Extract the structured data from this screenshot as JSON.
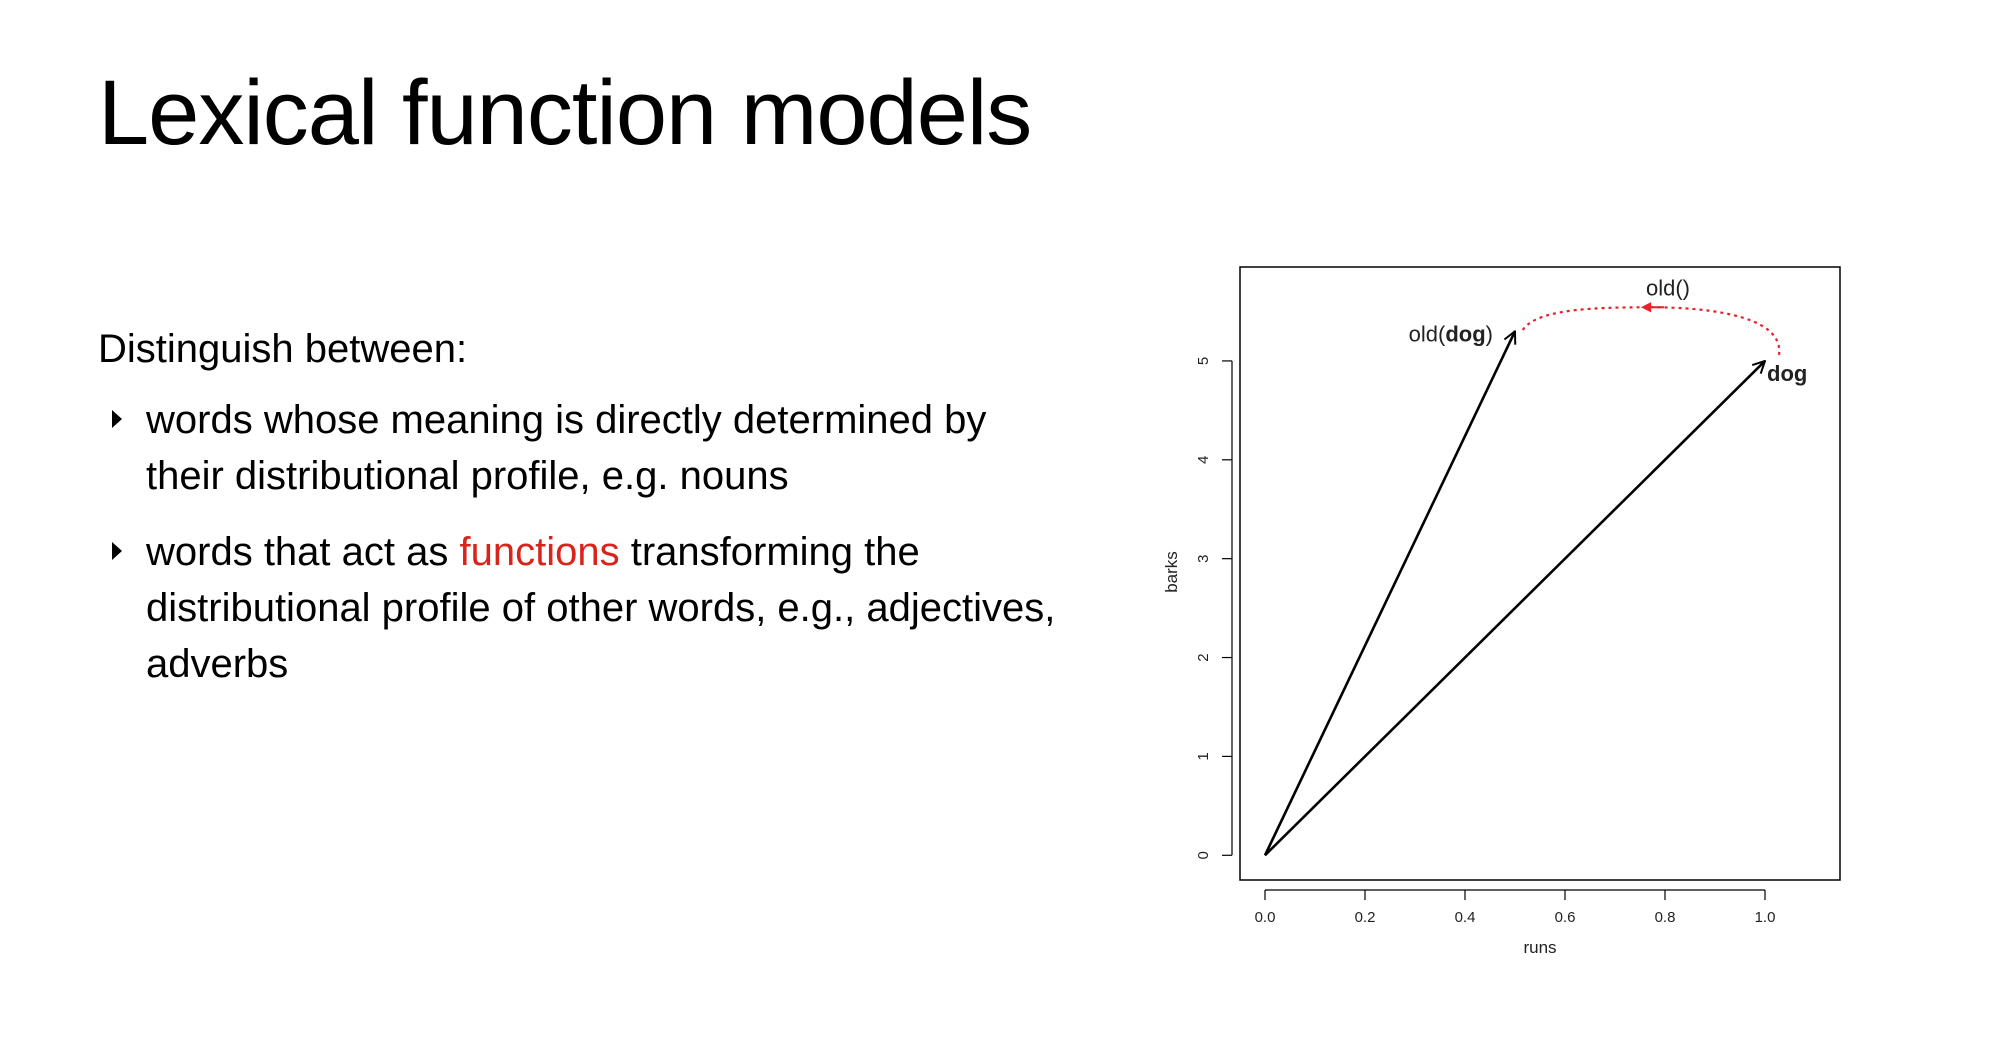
{
  "slide": {
    "title": "Lexical function models",
    "intro": "Distinguish between:",
    "bullets": [
      {
        "text": "words whose meaning is directly determined by their distributional profile, e.g. nouns"
      },
      {
        "before": "words that act as ",
        "highlight": "functions",
        "after": " transforming the distributional profile of other words, e.g., adjectives, adverbs"
      }
    ],
    "highlight_color": "#d9241b"
  },
  "chart_data": {
    "type": "scatter",
    "xlabel": "runs",
    "ylabel": "barks",
    "xlim": [
      -0.05,
      1.15
    ],
    "ylim": [
      -0.25,
      5.95
    ],
    "xticks": [
      "0.0",
      "0.2",
      "0.4",
      "0.6",
      "0.8",
      "1.0"
    ],
    "yticks": [
      "0",
      "1",
      "2",
      "3",
      "4",
      "5"
    ],
    "vectors": [
      {
        "name": "old(dog)",
        "label_prefix": "old(",
        "label_bold": "dog",
        "label_suffix": ")",
        "from": [
          0,
          0
        ],
        "to": [
          0.5,
          5.3
        ]
      },
      {
        "name": "dog",
        "label_prefix": "",
        "label_bold": "dog",
        "label_suffix": "",
        "from": [
          0,
          0
        ],
        "to": [
          1.0,
          5.0
        ]
      }
    ],
    "transform": {
      "label": "old()",
      "from": [
        1.0,
        5.0
      ],
      "to": [
        0.5,
        5.3
      ],
      "color": "#e8202a",
      "style": "dotted"
    }
  }
}
